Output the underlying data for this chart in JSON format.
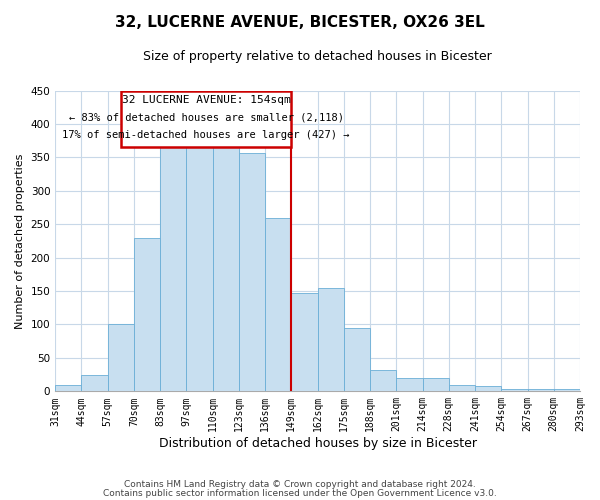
{
  "title": "32, LUCERNE AVENUE, BICESTER, OX26 3EL",
  "subtitle": "Size of property relative to detached houses in Bicester",
  "xlabel": "Distribution of detached houses by size in Bicester",
  "ylabel": "Number of detached properties",
  "categories": [
    "31sqm",
    "44sqm",
    "57sqm",
    "70sqm",
    "83sqm",
    "97sqm",
    "110sqm",
    "123sqm",
    "136sqm",
    "149sqm",
    "162sqm",
    "175sqm",
    "188sqm",
    "201sqm",
    "214sqm",
    "228sqm",
    "241sqm",
    "254sqm",
    "267sqm",
    "280sqm",
    "293sqm"
  ],
  "values": [
    10,
    25,
    100,
    230,
    365,
    370,
    373,
    357,
    260,
    147,
    155,
    95,
    32,
    20,
    20,
    10,
    8,
    3,
    3,
    3
  ],
  "bar_color": "#c8dff0",
  "bar_edge_color": "#6aaed6",
  "reference_line_label": "32 LUCERNE AVENUE: 154sqm",
  "annotation_line1": "← 83% of detached houses are smaller (2,118)",
  "annotation_line2": "17% of semi-detached houses are larger (427) →",
  "ylim": [
    0,
    450
  ],
  "footnote1": "Contains HM Land Registry data © Crown copyright and database right 2024.",
  "footnote2": "Contains public sector information licensed under the Open Government Licence v3.0.",
  "bg_color": "#ffffff",
  "grid_color": "#c8d8e8",
  "box_color_edge": "#cc0000",
  "box_color_fill": "#ffffff",
  "ref_line_color": "#cc0000",
  "title_fontsize": 11,
  "subtitle_fontsize": 9,
  "ylabel_fontsize": 8,
  "xlabel_fontsize": 9,
  "tick_fontsize": 7,
  "footnote_fontsize": 6.5
}
